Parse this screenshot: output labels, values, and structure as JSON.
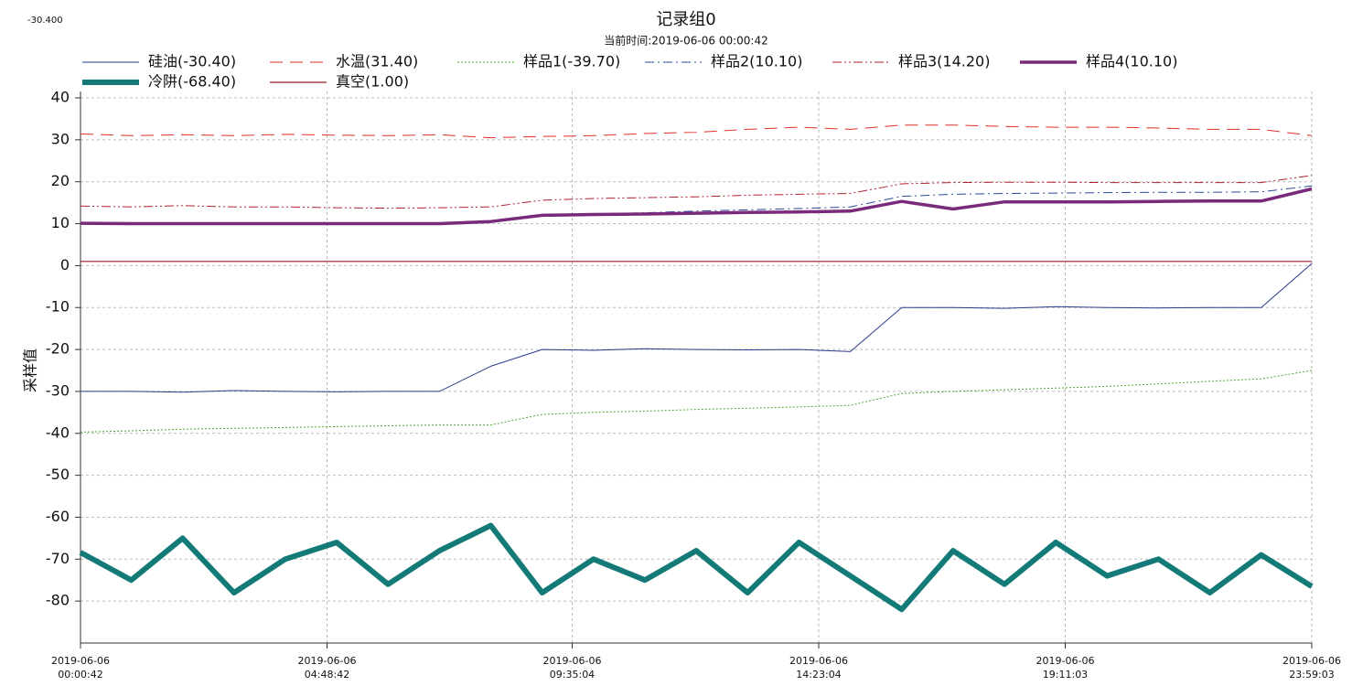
{
  "corner_text": "-30.400",
  "chart_data": {
    "type": "line",
    "title": "记录组0",
    "subtitle": "当前时间:2019-06-06  00:00:42",
    "ylabel": "采样值",
    "x": [
      42,
      3600,
      7200,
      10800,
      14400,
      18000,
      21600,
      25200,
      28800,
      32400,
      36000,
      39600,
      43200,
      46800,
      50400,
      54000,
      57600,
      61200,
      64800,
      68400,
      72000,
      75600,
      79200,
      82800,
      86343
    ],
    "xlim": [
      42,
      86343
    ],
    "xticks": [
      {
        "value": 42,
        "label": "2019-06-06\n00:00:42"
      },
      {
        "value": 17322,
        "label": "2019-06-06\n04:48:42"
      },
      {
        "value": 34504,
        "label": "2019-06-06\n09:35:04"
      },
      {
        "value": 51784,
        "label": "2019-06-06\n14:23:04"
      },
      {
        "value": 69063,
        "label": "2019-06-06\n19:11:03"
      },
      {
        "value": 86343,
        "label": "2019-06-06\n23:59:03"
      }
    ],
    "ylim": [
      -90,
      40
    ],
    "yticks": [
      40,
      30,
      20,
      10,
      0,
      -10,
      -20,
      -30,
      -40,
      -50,
      -60,
      -70,
      -80
    ],
    "grid": true,
    "series": [
      {
        "name": "硅油(-30.40)",
        "color": "#2a3a8c",
        "width": 1,
        "dash": "",
        "values": [
          -30,
          -30,
          -30.2,
          -29.8,
          -30,
          -30.1,
          -30,
          -30,
          -24,
          -20,
          -20.2,
          -19.8,
          -20,
          -20.1,
          -20,
          -20.5,
          -10,
          -10,
          -10.2,
          -9.8,
          -10,
          -10.1,
          -10,
          -10,
          0.5
        ]
      },
      {
        "name": "水温(31.40)",
        "color": "#e0302a",
        "width": 1,
        "dash": "14 8",
        "values": [
          31.4,
          31,
          31.2,
          31,
          31.3,
          31.1,
          31,
          31.2,
          30.5,
          30.8,
          31,
          31.5,
          31.8,
          32.5,
          33,
          32.5,
          33.5,
          33.5,
          33.2,
          33,
          33,
          32.8,
          32.5,
          32.5,
          31
        ]
      },
      {
        "name": "样品1(-39.70)",
        "color": "#4aa830",
        "width": 1,
        "dash": "2 2",
        "values": [
          -39.7,
          -39.4,
          -39,
          -38.8,
          -38.6,
          -38.4,
          -38.2,
          -38,
          -38,
          -35.5,
          -35,
          -34.7,
          -34.3,
          -34,
          -33.7,
          -33.3,
          -30.5,
          -30,
          -29.6,
          -29.2,
          -28.8,
          -28.2,
          -27.6,
          -27,
          -25
        ]
      },
      {
        "name": "样品2(10.10)",
        "color": "#2a4a9a",
        "width": 1,
        "dash": "10 4 2 4",
        "values": [
          10.1,
          10,
          10,
          10,
          10,
          10,
          10,
          10,
          10.3,
          12,
          12.3,
          12.6,
          13,
          13.3,
          13.6,
          14,
          16.5,
          17,
          17.2,
          17.3,
          17.4,
          17.5,
          17.5,
          17.6,
          19
        ]
      },
      {
        "name": "样品3(14.20)",
        "color": "#b02030",
        "width": 1,
        "dash": "10 3 2 3 2 3",
        "values": [
          14.2,
          14,
          14.3,
          14,
          14,
          13.8,
          13.7,
          13.8,
          14,
          15.6,
          16,
          16.2,
          16.4,
          16.8,
          17,
          17.2,
          19.5,
          19.8,
          19.9,
          19.9,
          19.8,
          19.8,
          19.8,
          19.8,
          21.5
        ]
      },
      {
        "name": "样品4(10.10)",
        "color": "#7a2a7a",
        "width": 3.5,
        "dash": "",
        "values": [
          10.1,
          10,
          10,
          10,
          10,
          10,
          10,
          10,
          10.5,
          12,
          12.2,
          12.3,
          12.5,
          12.7,
          12.8,
          13,
          15.3,
          13.5,
          15.2,
          15.2,
          15.2,
          15.3,
          15.4,
          15.4,
          18.3
        ]
      },
      {
        "name": "冷阱(-68.40)",
        "color": "#137a78",
        "width": 6,
        "dash": "",
        "values": [
          -68.4,
          -75,
          -65,
          -78,
          -70,
          -66,
          -76,
          -68,
          -62,
          -78,
          -70,
          -75,
          -68,
          -78,
          -66,
          -74,
          -82,
          -68,
          -76,
          -66,
          -74,
          -70,
          -78,
          -69,
          -76.5
        ]
      },
      {
        "name": "真空(1.00)",
        "color": "#9a1a1a",
        "width": 1.2,
        "dash": "",
        "values": [
          1,
          1,
          1,
          1,
          1,
          1,
          1,
          1,
          1,
          1,
          1,
          1,
          1,
          1,
          1,
          1,
          1,
          1,
          1,
          1,
          1,
          1,
          1,
          1,
          1
        ]
      }
    ]
  }
}
